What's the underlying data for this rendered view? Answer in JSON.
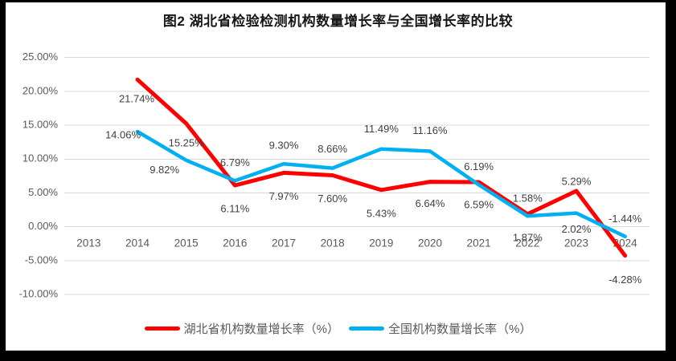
{
  "frame": {
    "border_color": "#000000",
    "canvas_color": "#ffffff"
  },
  "chart_data": {
    "type": "line",
    "title": "图2  湖北省检验检测机构数量增长率与全国增长率的比较",
    "categories": [
      "2013",
      "2014",
      "2015",
      "2016",
      "2017",
      "2018",
      "2019",
      "2020",
      "2021",
      "2022",
      "2023",
      "2024"
    ],
    "series": [
      {
        "name": "湖北省机构数量增长率（%）",
        "color": "#ff0000",
        "values": [
          null,
          21.74,
          15.25,
          6.11,
          7.97,
          7.6,
          5.43,
          6.64,
          6.59,
          1.87,
          5.29,
          -4.28
        ],
        "labels": [
          "",
          "21.74%",
          "15.25%",
          "6.11%",
          "7.97%",
          "7.60%",
          "5.43%",
          "6.64%",
          "6.59%",
          "1.87%",
          "5.29%",
          "-4.28%"
        ]
      },
      {
        "name": "全国机构数量增长率（%）",
        "color": "#00b0f0",
        "values": [
          null,
          14.06,
          9.82,
          6.79,
          9.3,
          8.66,
          11.49,
          11.16,
          6.19,
          1.58,
          2.02,
          -1.44
        ],
        "labels": [
          "",
          "14.06%",
          "9.82%",
          "6.79%",
          "9.30%",
          "8.66%",
          "11.49%",
          "11.16%",
          "6.19%",
          "1.58%",
          "2.02%",
          "-1.44%"
        ]
      }
    ],
    "y_axis": {
      "min": -10,
      "max": 25,
      "step": 5,
      "ticks": [
        {
          "value": 25,
          "label": "25.00%"
        },
        {
          "value": 20,
          "label": "20.00%"
        },
        {
          "value": 15,
          "label": "15.00%"
        },
        {
          "value": 10,
          "label": "10.00%"
        },
        {
          "value": 5,
          "label": "5.00%"
        },
        {
          "value": 0,
          "label": "0.00%"
        },
        {
          "value": -5,
          "label": "-5.00%"
        },
        {
          "value": -10,
          "label": "-10.00%"
        }
      ]
    },
    "grid": true,
    "legend_position": "bottom",
    "colors": {
      "gridline": "#d9d9d9",
      "axis_text": "#595959",
      "data_label_text": "#3f3f3f"
    }
  }
}
